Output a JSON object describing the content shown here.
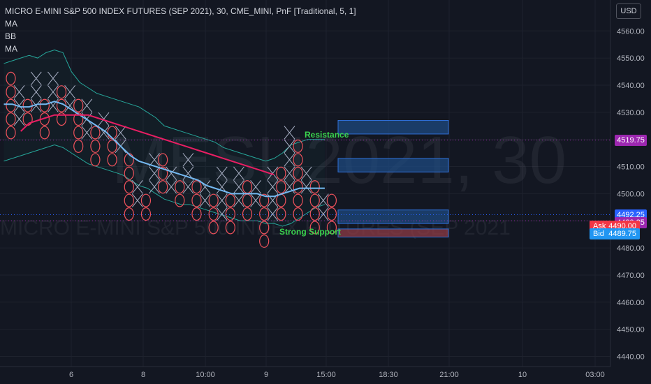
{
  "watermark": {
    "symbol": "MESU2021, 30",
    "description": "MICRO E-MINI S&P 500 INDEX FUTURES (SEP 2021"
  },
  "legend": {
    "title": "MICRO E-MINI S&P 500 INDEX FUTURES (SEP 2021), 30, CME_MINI, PnF [Traditional, 5, 1]",
    "indicators": [
      "MA",
      "BB",
      "MA"
    ]
  },
  "currency": "USD",
  "price_tags": [
    {
      "label": "4519.75",
      "value": 4519.75,
      "color": "#9c27b0"
    },
    {
      "label": "4492.25",
      "value": 4492.25,
      "color": "#2962ff"
    },
    {
      "label": "4489.25",
      "value": 4489.25,
      "color": "#9c27b0"
    }
  ],
  "ask": {
    "label": "Ask",
    "value_label": "4490.00",
    "value": 4490.0,
    "color": "#f23645"
  },
  "bid": {
    "label": "Bid",
    "value_label": "4489.75",
    "value": 4489.75,
    "color": "#2196f3"
  },
  "annotations": {
    "resistance": "Resistance",
    "support": "Strong Support"
  },
  "colors": {
    "x_box": "#a9b0c5",
    "o_box": "#f0525c",
    "ma_fast": "#74b9f2",
    "ma_slow": "#e91e63",
    "bb": "#26a69a",
    "zone_blue": "#1e4a80",
    "zone_red": "#8e3b46"
  },
  "chart_data": {
    "type": "line",
    "title": "MICRO E-MINI S&P 500 INDEX FUTURES (SEP 2021), 30, CME_MINI, PnF [Traditional, 5, 1]",
    "ylim": [
      4436,
      4574
    ],
    "y_ticks": [
      4560,
      4550,
      4540,
      4530,
      4520,
      4510,
      4500,
      4490,
      4480,
      4470,
      4460,
      4450,
      4440
    ],
    "y_tick_labels": [
      "4560.00",
      "4550.00",
      "4540.00",
      "4530.00",
      "4520.00",
      "4510.00",
      "4500.00",
      "4490.00",
      "4480.00",
      "4470.00",
      "4460.00",
      "4450.00",
      "4440.00"
    ],
    "x_ticks": [
      "6",
      "8",
      "10:00",
      "9",
      "15:00",
      "18:30",
      "21:00",
      "10",
      "03:00"
    ],
    "pnf_box_size": 5,
    "pnf_columns": [
      {
        "type": "O",
        "high": 4545,
        "low": 4525
      },
      {
        "type": "X",
        "high": 4540,
        "low": 4530
      },
      {
        "type": "O",
        "high": 4535,
        "low": 4530
      },
      {
        "type": "X",
        "high": 4545,
        "low": 4535
      },
      {
        "type": "O",
        "high": 4535,
        "low": 4525
      },
      {
        "type": "X",
        "high": 4545,
        "low": 4535
      },
      {
        "type": "O",
        "high": 4540,
        "low": 4530
      },
      {
        "type": "X",
        "high": 4540,
        "low": 4535
      },
      {
        "type": "O",
        "high": 4535,
        "low": 4520
      },
      {
        "type": "X",
        "high": 4535,
        "low": 4525
      },
      {
        "type": "O",
        "high": 4525,
        "low": 4515
      },
      {
        "type": "X",
        "high": 4530,
        "low": 4525
      },
      {
        "type": "O",
        "high": 4525,
        "low": 4515
      },
      {
        "type": "X",
        "high": 4525,
        "low": 4520
      },
      {
        "type": "O",
        "high": 4515,
        "low": 4495
      },
      {
        "type": "X",
        "high": 4505,
        "low": 4500
      },
      {
        "type": "O",
        "high": 4500,
        "low": 4495
      },
      {
        "type": "X",
        "high": 4515,
        "low": 4505
      },
      {
        "type": "O",
        "high": 4515,
        "low": 4505
      },
      {
        "type": "X",
        "high": 4510,
        "low": 4505
      },
      {
        "type": "O",
        "high": 4505,
        "low": 4500
      },
      {
        "type": "X",
        "high": 4515,
        "low": 4505
      },
      {
        "type": "O",
        "high": 4505,
        "low": 4495
      },
      {
        "type": "X",
        "high": 4505,
        "low": 4500
      },
      {
        "type": "O",
        "high": 4500,
        "low": 4490
      },
      {
        "type": "X",
        "high": 4510,
        "low": 4495
      },
      {
        "type": "O",
        "high": 4500,
        "low": 4490
      },
      {
        "type": "X",
        "high": 4510,
        "low": 4500
      },
      {
        "type": "O",
        "high": 4505,
        "low": 4495
      },
      {
        "type": "X",
        "high": 4505,
        "low": 4500
      },
      {
        "type": "O",
        "high": 4500,
        "low": 4485
      },
      {
        "type": "X",
        "high": 4510,
        "low": 4495
      },
      {
        "type": "O",
        "high": 4510,
        "low": 4495
      },
      {
        "type": "X",
        "high": 4525,
        "low": 4505
      },
      {
        "type": "O",
        "high": 4520,
        "low": 4495
      },
      {
        "type": "X",
        "high": 4510,
        "low": 4505
      },
      {
        "type": "O",
        "high": 4505,
        "low": 4490
      },
      {
        "type": "X",
        "high": 4500,
        "low": 4495
      },
      {
        "type": "O",
        "high": 4500,
        "low": 4490
      }
    ],
    "series": [
      {
        "name": "MA",
        "color": "#74b9f2",
        "values": [
          4533,
          4533,
          4532,
          4532,
          4533,
          4533,
          4534,
          4533,
          4531,
          4529,
          4527,
          4525,
          4523,
          4520,
          4517,
          4514,
          4512,
          4511,
          4510,
          4509,
          4508,
          4507,
          4506,
          4505,
          4503,
          4502,
          4501,
          4500,
          4500,
          4500,
          4500,
          4499,
          4499,
          4500,
          4501,
          4502,
          4502,
          4502,
          4502
        ]
      },
      {
        "name": "MA",
        "color": "#e91e63",
        "values": [
          null,
          null,
          4523,
          4526,
          4527,
          4528,
          4529,
          4529,
          4529,
          4529,
          4529,
          4528,
          4527,
          4526,
          4525,
          4524,
          4523,
          4522,
          4521,
          4520,
          4519,
          4518,
          4517,
          4516,
          4515,
          4514,
          4513,
          4512,
          4511,
          4510,
          4509,
          4508,
          4507
        ]
      },
      {
        "name": "BB",
        "color": "#26a69a",
        "upper": [
          4548,
          4549,
          4550,
          4551,
          4550,
          4552,
          4553,
          4552,
          4545,
          4541,
          4539,
          4537,
          4536,
          4535,
          4534,
          4533,
          4532,
          4530,
          4528,
          4525,
          4524,
          4523,
          4522,
          4521,
          4520,
          4519,
          4517,
          4516,
          4515,
          4514,
          4513,
          4512,
          4513,
          4515,
          4518,
          4519,
          4520,
          4520,
          4520
        ],
        "lower": [
          4512,
          4513,
          4514,
          4515,
          4516,
          4517,
          4518,
          4517,
          4515,
          4513,
          4511,
          4510,
          4509,
          4508,
          4507,
          4505,
          4503,
          4502,
          4500,
          4498,
          4497,
          4496,
          4496,
          4495,
          4494,
          4493,
          4492,
          4491,
          4490,
          4490,
          4490,
          4489,
          4489,
          4488,
          4489,
          4491,
          4493,
          4495,
          4496
        ]
      }
    ],
    "zones": [
      {
        "type": "resistance",
        "top": 4527,
        "bottom": 4522,
        "color": "#1e4a80"
      },
      {
        "type": "resistance",
        "top": 4513,
        "bottom": 4508,
        "color": "#1e4a80"
      },
      {
        "type": "support",
        "top": 4494,
        "bottom": 4489,
        "color": "#1e4a80"
      },
      {
        "type": "support",
        "top": 4487,
        "bottom": 4484,
        "color": "#8e3b46"
      }
    ],
    "horizontal_lines": [
      4519.75,
      4492.25,
      4490.0
    ],
    "grid": true,
    "legend_position": "top-left"
  }
}
